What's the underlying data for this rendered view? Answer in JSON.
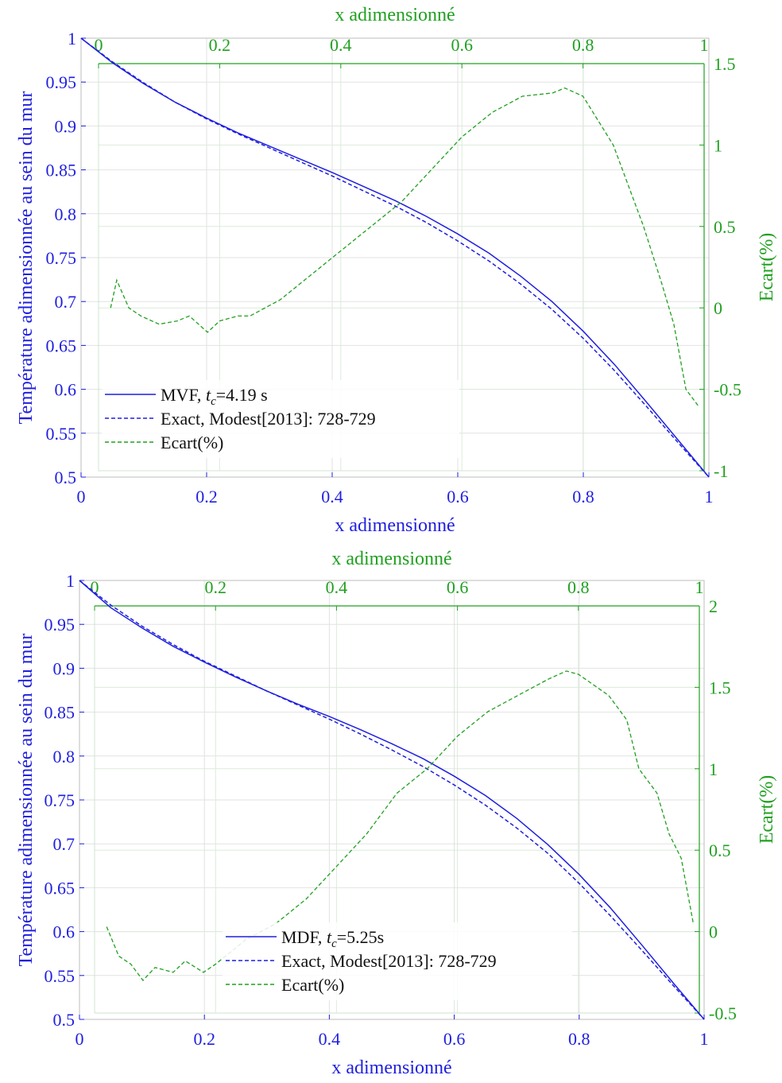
{
  "charts": [
    {
      "top_xlabel": "x adimensionné",
      "bottom_xlabel": "x adimensionné",
      "left_ylabel": "Température adimensionnée au sein du mur",
      "right_ylabel": "Ecart(%)",
      "legend": [
        {
          "name": "MVF, ",
          "sub_label": "t",
          "sub_index": "c",
          "suffix": "=4.19 s",
          "style": "solid",
          "color": "#1f1fe0"
        },
        {
          "name": "Exact, Modest[2013]: 728-729",
          "style": "dashed",
          "color": "#1f1fe0"
        },
        {
          "name": "Ecart(%)",
          "style": "dashed",
          "color": "#20a020"
        }
      ]
    },
    {
      "top_xlabel": "x adimensionné",
      "bottom_xlabel": "x adimensionné",
      "left_ylabel": "Température adimensionnée au sein du mur",
      "right_ylabel": "Ecart(%)",
      "legend": [
        {
          "name": "MDF, ",
          "sub_label": "t",
          "sub_index": "c",
          "suffix": "=5.25s",
          "style": "solid",
          "color": "#1f1fe0"
        },
        {
          "name": "Exact, Modest[2013]: 728-729",
          "style": "dashed",
          "color": "#1f1fe0"
        },
        {
          "name": "Ecart(%)",
          "style": "dashed",
          "color": "#20a020"
        }
      ]
    }
  ],
  "chart_data": [
    {
      "type": "line",
      "xlabel": "x adimensionné",
      "ylabel": "Température adimensionnée au sein du mur",
      "xlim": [
        0,
        1
      ],
      "ylim": [
        0.5,
        1
      ],
      "xticks": [
        "0",
        "0.2",
        "0.4",
        "0.6",
        "0.8",
        "1"
      ],
      "yticks": [
        "0.5",
        "0.55",
        "0.6",
        "0.65",
        "0.7",
        "0.75",
        "0.8",
        "0.85",
        "0.9",
        "0.95",
        "1"
      ],
      "top_xlim": [
        0,
        1
      ],
      "top_xticks": [
        "0",
        "0.2",
        "0.4",
        "0.6",
        "0.8",
        "1"
      ],
      "y2label": "Ecart(%)",
      "y2lim": [
        -1,
        1.5
      ],
      "y2ticks": [
        "-1",
        "-0.5",
        "0",
        "0.5",
        "1",
        "1.5"
      ],
      "grid": true,
      "legend_position": "bottom-left",
      "series": [
        {
          "name": "MVF, tc=4.19 s",
          "axis": "left",
          "x": [
            0,
            0.05,
            0.1,
            0.15,
            0.2,
            0.25,
            0.3,
            0.35,
            0.4,
            0.45,
            0.5,
            0.55,
            0.6,
            0.65,
            0.7,
            0.75,
            0.8,
            0.85,
            0.9,
            0.95,
            1
          ],
          "y": [
            1.0,
            0.972,
            0.948,
            0.927,
            0.909,
            0.892,
            0.877,
            0.862,
            0.847,
            0.831,
            0.815,
            0.797,
            0.777,
            0.755,
            0.729,
            0.7,
            0.666,
            0.628,
            0.586,
            0.543,
            0.5
          ]
        },
        {
          "name": "Exact, Modest[2013]: 728-729",
          "axis": "left",
          "x": [
            0,
            0.05,
            0.1,
            0.15,
            0.2,
            0.25,
            0.3,
            0.35,
            0.4,
            0.45,
            0.5,
            0.55,
            0.6,
            0.65,
            0.7,
            0.75,
            0.8,
            0.85,
            0.9,
            0.95,
            1
          ],
          "y": [
            1.0,
            0.973,
            0.949,
            0.927,
            0.908,
            0.891,
            0.875,
            0.859,
            0.843,
            0.826,
            0.809,
            0.79,
            0.769,
            0.746,
            0.72,
            0.691,
            0.658,
            0.621,
            0.581,
            0.54,
            0.5
          ]
        },
        {
          "name": "Ecart(%)",
          "axis": "right",
          "x": [
            0.02,
            0.03,
            0.05,
            0.07,
            0.1,
            0.13,
            0.15,
            0.18,
            0.2,
            0.23,
            0.25,
            0.3,
            0.35,
            0.4,
            0.45,
            0.5,
            0.55,
            0.6,
            0.65,
            0.7,
            0.75,
            0.77,
            0.8,
            0.85,
            0.9,
            0.93,
            0.95,
            0.97,
            0.99
          ],
          "y": [
            0.0,
            0.17,
            0.0,
            -0.05,
            -0.1,
            -0.08,
            -0.05,
            -0.15,
            -0.08,
            -0.05,
            -0.05,
            0.05,
            0.2,
            0.35,
            0.5,
            0.65,
            0.85,
            1.05,
            1.2,
            1.3,
            1.32,
            1.35,
            1.3,
            1.0,
            0.5,
            0.15,
            -0.1,
            -0.5,
            -0.6
          ]
        }
      ]
    },
    {
      "type": "line",
      "xlabel": "x adimensionné",
      "ylabel": "Température adimensionnée au sein du mur",
      "xlim": [
        0,
        1
      ],
      "ylim": [
        0.5,
        1
      ],
      "xticks": [
        "0",
        "0.2",
        "0.4",
        "0.6",
        "0.8",
        "1"
      ],
      "yticks": [
        "0.5",
        "0.55",
        "0.6",
        "0.65",
        "0.7",
        "0.75",
        "0.8",
        "0.85",
        "0.9",
        "0.95",
        "1"
      ],
      "top_xlim": [
        0,
        1
      ],
      "top_xticks": [
        "0",
        "0.2",
        "0.4",
        "0.6",
        "0.8",
        "1"
      ],
      "y2label": "Ecart(%)",
      "y2lim": [
        -0.5,
        2
      ],
      "y2ticks": [
        "-0.5",
        "0",
        "0.5",
        "1",
        "1.5",
        "2"
      ],
      "grid": true,
      "legend_position": "bottom-center",
      "series": [
        {
          "name": "MDF, tc=5.25s",
          "axis": "left",
          "x": [
            0,
            0.05,
            0.1,
            0.15,
            0.2,
            0.25,
            0.3,
            0.35,
            0.4,
            0.45,
            0.5,
            0.55,
            0.6,
            0.65,
            0.7,
            0.75,
            0.8,
            0.85,
            0.9,
            0.95,
            1
          ],
          "y": [
            1.0,
            0.969,
            0.946,
            0.925,
            0.907,
            0.89,
            0.874,
            0.859,
            0.845,
            0.83,
            0.814,
            0.797,
            0.777,
            0.755,
            0.729,
            0.699,
            0.665,
            0.627,
            0.585,
            0.542,
            0.5
          ]
        },
        {
          "name": "Exact, Modest[2013]: 728-729",
          "axis": "left",
          "x": [
            0,
            0.05,
            0.1,
            0.15,
            0.2,
            0.25,
            0.3,
            0.35,
            0.4,
            0.45,
            0.5,
            0.55,
            0.6,
            0.65,
            0.7,
            0.75,
            0.8,
            0.85,
            0.9,
            0.95,
            1
          ],
          "y": [
            1.0,
            0.972,
            0.948,
            0.927,
            0.908,
            0.891,
            0.874,
            0.858,
            0.842,
            0.825,
            0.807,
            0.788,
            0.767,
            0.744,
            0.718,
            0.689,
            0.655,
            0.618,
            0.579,
            0.539,
            0.5
          ]
        },
        {
          "name": "Ecart(%)",
          "axis": "right",
          "x": [
            0.02,
            0.04,
            0.06,
            0.08,
            0.1,
            0.13,
            0.15,
            0.18,
            0.2,
            0.25,
            0.3,
            0.35,
            0.4,
            0.45,
            0.5,
            0.55,
            0.6,
            0.65,
            0.7,
            0.75,
            0.78,
            0.8,
            0.85,
            0.88,
            0.9,
            0.93,
            0.95,
            0.97,
            0.99
          ],
          "y": [
            0.03,
            -0.15,
            -0.2,
            -0.3,
            -0.22,
            -0.25,
            -0.18,
            -0.25,
            -0.2,
            -0.05,
            0.05,
            0.2,
            0.4,
            0.6,
            0.85,
            1.0,
            1.2,
            1.35,
            1.45,
            1.55,
            1.6,
            1.58,
            1.45,
            1.3,
            1.0,
            0.85,
            0.6,
            0.45,
            0.05
          ]
        }
      ]
    }
  ]
}
